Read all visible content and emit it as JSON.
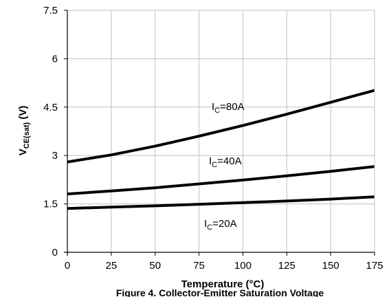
{
  "chart_data": {
    "type": "line",
    "caption": "Figure 4. Collector-Emitter Saturation Voltage",
    "xlabel": "Temperature (°C)",
    "ylabel": {
      "main": "V",
      "sub": "CE(sat)",
      "unit": " (V)"
    },
    "xlim": [
      0,
      175
    ],
    "ylim": [
      0,
      7.5
    ],
    "x_ticks": [
      "0",
      "25",
      "50",
      "75",
      "100",
      "125",
      "150",
      "175"
    ],
    "y_ticks": [
      "0",
      "1.5",
      "3",
      "4.5",
      "6",
      "7.5"
    ],
    "grid": true,
    "legend": "none",
    "color": "#000000",
    "series": [
      {
        "label": {
          "main": "I",
          "sub": "C",
          "rest": "=80A"
        },
        "x": [
          0,
          25,
          50,
          75,
          100,
          125,
          150,
          175
        ],
        "y": [
          2.8,
          3.02,
          3.29,
          3.6,
          3.93,
          4.28,
          4.65,
          5.02
        ]
      },
      {
        "label": {
          "main": "I",
          "sub": "C",
          "rest": "=40A"
        },
        "x": [
          0,
          25,
          50,
          75,
          100,
          125,
          150,
          175
        ],
        "y": [
          1.81,
          1.9,
          2.0,
          2.12,
          2.24,
          2.37,
          2.51,
          2.66
        ]
      },
      {
        "label": {
          "main": "I",
          "sub": "C",
          "rest": "=20A"
        },
        "x": [
          0,
          25,
          50,
          75,
          100,
          125,
          150,
          175
        ],
        "y": [
          1.36,
          1.4,
          1.44,
          1.49,
          1.54,
          1.59,
          1.65,
          1.72
        ]
      }
    ]
  }
}
